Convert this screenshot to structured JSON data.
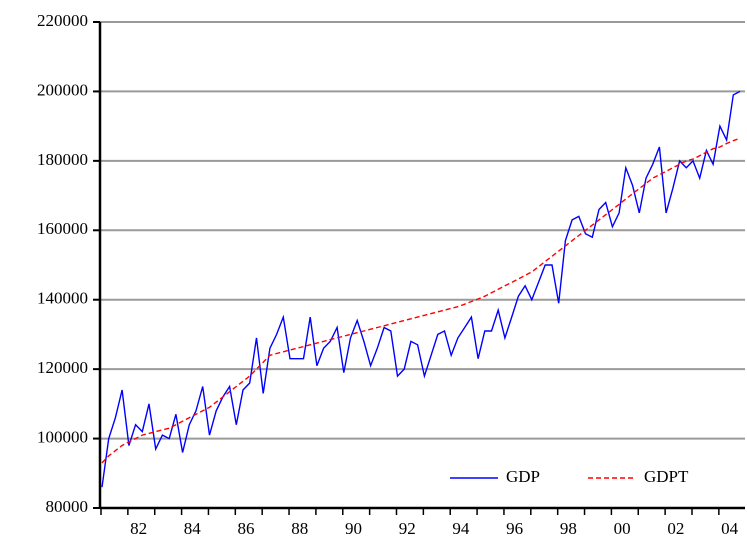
{
  "chart_data": {
    "type": "line",
    "categories": [
      null,
      null,
      null,
      null,
      null,
      "82",
      null,
      null,
      null,
      null,
      null,
      null,
      null,
      "84",
      null,
      null,
      null,
      null,
      null,
      null,
      null,
      "86",
      null,
      null,
      null,
      null,
      null,
      null,
      null,
      "88",
      null,
      null,
      null,
      null,
      null,
      null,
      null,
      "90",
      null,
      null,
      null,
      null,
      null,
      null,
      null,
      "92",
      null,
      null,
      null,
      null,
      null,
      null,
      null,
      "94",
      null,
      null,
      null,
      null,
      null,
      null,
      null,
      "96",
      null,
      null,
      null,
      null,
      null,
      null,
      null,
      "98",
      null,
      null,
      null,
      null,
      null,
      null,
      null,
      "00",
      null,
      null,
      null,
      null,
      null,
      null,
      null,
      "02",
      null,
      null,
      null,
      null,
      null,
      null,
      null,
      "04",
      null,
      null
    ],
    "series": [
      {
        "name": "GDP",
        "color": "#0000ff",
        "dash": false,
        "values": [
          86000,
          100000,
          106000,
          114000,
          98000,
          104000,
          102000,
          110000,
          97000,
          101000,
          100000,
          107000,
          96000,
          104000,
          108000,
          115000,
          101000,
          108000,
          112000,
          115000,
          104000,
          114000,
          116000,
          129000,
          113000,
          126000,
          130000,
          135000,
          123000,
          123000,
          123000,
          135000,
          121000,
          126000,
          128000,
          132000,
          119000,
          129000,
          134000,
          128000,
          121000,
          126000,
          132000,
          131000,
          118000,
          120000,
          128000,
          127000,
          118000,
          124000,
          130000,
          131000,
          124000,
          129000,
          132000,
          135000,
          123000,
          131000,
          131000,
          137000,
          129000,
          135000,
          141000,
          144000,
          140000,
          145000,
          150000,
          150000,
          139000,
          157000,
          163000,
          164000,
          159000,
          158000,
          166000,
          168000,
          161000,
          165000,
          178000,
          173000,
          165000,
          175000,
          179000,
          184000,
          165000,
          172000,
          180000,
          178000,
          180000,
          175000,
          183000,
          179000,
          190000,
          186000,
          199000,
          200000
        ]
      },
      {
        "name": "GDPT",
        "color": "#ff0000",
        "dash": true,
        "values": [
          93000,
          95000,
          96500,
          98000,
          99000,
          100000,
          101000,
          101500,
          102000,
          102500,
          103000,
          104000,
          105000,
          106000,
          107000,
          108000,
          109000,
          110500,
          112000,
          113500,
          115000,
          116500,
          118000,
          120000,
          122000,
          124000,
          124500,
          125000,
          125500,
          126000,
          126500,
          127000,
          127500,
          128000,
          128500,
          129000,
          129500,
          130000,
          130500,
          131000,
          131500,
          132000,
          132500,
          133000,
          133500,
          134000,
          134500,
          135000,
          135500,
          136000,
          136500,
          137000,
          137500,
          138000,
          138700,
          139500,
          140200,
          141000,
          142000,
          143000,
          144000,
          145000,
          146000,
          147000,
          148000,
          149500,
          151000,
          152500,
          154000,
          155500,
          157000,
          158500,
          160000,
          161500,
          163000,
          164500,
          166000,
          167500,
          169000,
          170500,
          172000,
          173500,
          175000,
          176000,
          177000,
          178000,
          179000,
          180000,
          180500,
          181500,
          182500,
          183500,
          184000,
          185000,
          185800,
          186500
        ]
      }
    ],
    "ylim": [
      80000,
      220000
    ],
    "yticks": [
      80000,
      100000,
      120000,
      140000,
      160000,
      180000,
      200000,
      220000
    ],
    "grid": true,
    "legend": "lower-right"
  }
}
